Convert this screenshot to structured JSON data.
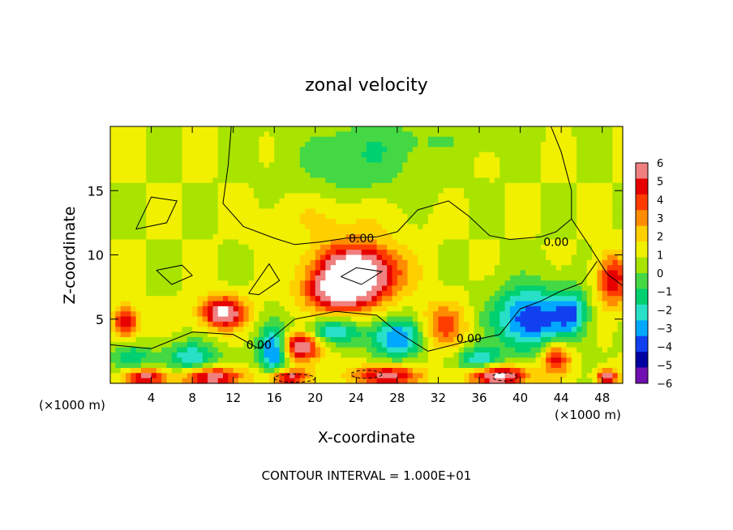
{
  "chart_data": {
    "type": "heatmap",
    "title": "zonal velocity",
    "xlabel": "X-coordinate",
    "ylabel": "Z-coordinate",
    "x_unit_left": "(×1000 m)",
    "x_unit_right": "(×1000 m)",
    "footer": "CONTOUR INTERVAL = 1.000E+01",
    "xlim": [
      0,
      50
    ],
    "ylim": [
      0,
      20
    ],
    "x_ticks": [
      4,
      8,
      12,
      16,
      20,
      24,
      28,
      32,
      36,
      40,
      44,
      48
    ],
    "y_ticks": [
      5,
      10,
      15
    ],
    "colorbar": {
      "ticks": [
        6,
        5,
        4,
        3,
        2,
        1,
        0,
        -1,
        -2,
        -3,
        -4,
        -5,
        -6
      ],
      "colors": [
        "#f08080",
        "#e60000",
        "#ff3c00",
        "#ff8c00",
        "#ffd000",
        "#f0f000",
        "#a8e400",
        "#44d844",
        "#00d070",
        "#28e0c8",
        "#00a8ff",
        "#1040f0",
        "#0000a0",
        "#7010b0"
      ]
    },
    "contour_labels": [
      {
        "x": 24.5,
        "y": 11.3,
        "text": "0.00"
      },
      {
        "x": 43.5,
        "y": 11.0,
        "text": "0.00"
      },
      {
        "x": 14.5,
        "y": 3.0,
        "text": "0.00"
      },
      {
        "x": 35.0,
        "y": 3.5,
        "text": "0.00"
      }
    ],
    "features": [
      {
        "x": 24.0,
        "y": 8.5,
        "sx": 4.0,
        "sy": 2.2,
        "v": 9
      },
      {
        "x": 22.0,
        "y": 7.0,
        "sx": 3.0,
        "sy": 1.5,
        "v": 4
      },
      {
        "x": 11.0,
        "y": 5.5,
        "sx": 2.2,
        "sy": 1.2,
        "v": 7
      },
      {
        "x": 1.5,
        "y": 4.8,
        "sx": 1.2,
        "sy": 1.2,
        "v": 5
      },
      {
        "x": 49.0,
        "y": 8.0,
        "sx": 1.5,
        "sy": 2.0,
        "v": 5
      },
      {
        "x": 18.5,
        "y": 3.0,
        "sx": 2.0,
        "sy": 1.3,
        "v": 7
      },
      {
        "x": 32.5,
        "y": 4.5,
        "sx": 2.2,
        "sy": 1.8,
        "v": 3.5
      },
      {
        "x": 43.5,
        "y": 2.0,
        "sx": 1.5,
        "sy": 1.3,
        "v": 5
      },
      {
        "x": 38.0,
        "y": 0.6,
        "sx": 3.0,
        "sy": 0.8,
        "v": 7
      },
      {
        "x": 10.0,
        "y": 0.5,
        "sx": 3.0,
        "sy": 0.8,
        "v": 6
      },
      {
        "x": 27.0,
        "y": 0.6,
        "sx": 3.0,
        "sy": 0.8,
        "v": 6
      },
      {
        "x": 17.5,
        "y": 0.5,
        "sx": 2.0,
        "sy": 0.6,
        "v": 6
      },
      {
        "x": 3.5,
        "y": 0.5,
        "sx": 2.0,
        "sy": 0.6,
        "v": 6
      },
      {
        "x": 48.5,
        "y": 0.5,
        "sx": 1.0,
        "sy": 0.6,
        "v": 6
      },
      {
        "x": 22.0,
        "y": 13.0,
        "sx": 6.0,
        "sy": 2.0,
        "v": 1.2
      },
      {
        "x": 16.0,
        "y": 2.5,
        "sx": 1.5,
        "sy": 1.8,
        "v": -6
      },
      {
        "x": 21.0,
        "y": 4.0,
        "sx": 3.5,
        "sy": 1.0,
        "v": -4
      },
      {
        "x": 28.0,
        "y": 3.5,
        "sx": 2.5,
        "sy": 1.6,
        "v": -5
      },
      {
        "x": 41.0,
        "y": 5.0,
        "sx": 3.5,
        "sy": 2.5,
        "v": -6
      },
      {
        "x": 45.0,
        "y": 5.5,
        "sx": 1.5,
        "sy": 1.8,
        "v": -4
      },
      {
        "x": 8.0,
        "y": 2.0,
        "sx": 2.5,
        "sy": 1.2,
        "v": -4
      },
      {
        "x": 2.0,
        "y": 2.0,
        "sx": 2.0,
        "sy": 1.0,
        "v": -3
      },
      {
        "x": 36.0,
        "y": 1.8,
        "sx": 2.0,
        "sy": 1.0,
        "v": -4
      },
      {
        "x": 24.0,
        "y": 17.0,
        "sx": 6.0,
        "sy": 3.0,
        "v": -1.8
      },
      {
        "x": 30.0,
        "y": 19.0,
        "sx": 8.0,
        "sy": 1.5,
        "v": -0.8
      }
    ],
    "grid": false
  }
}
